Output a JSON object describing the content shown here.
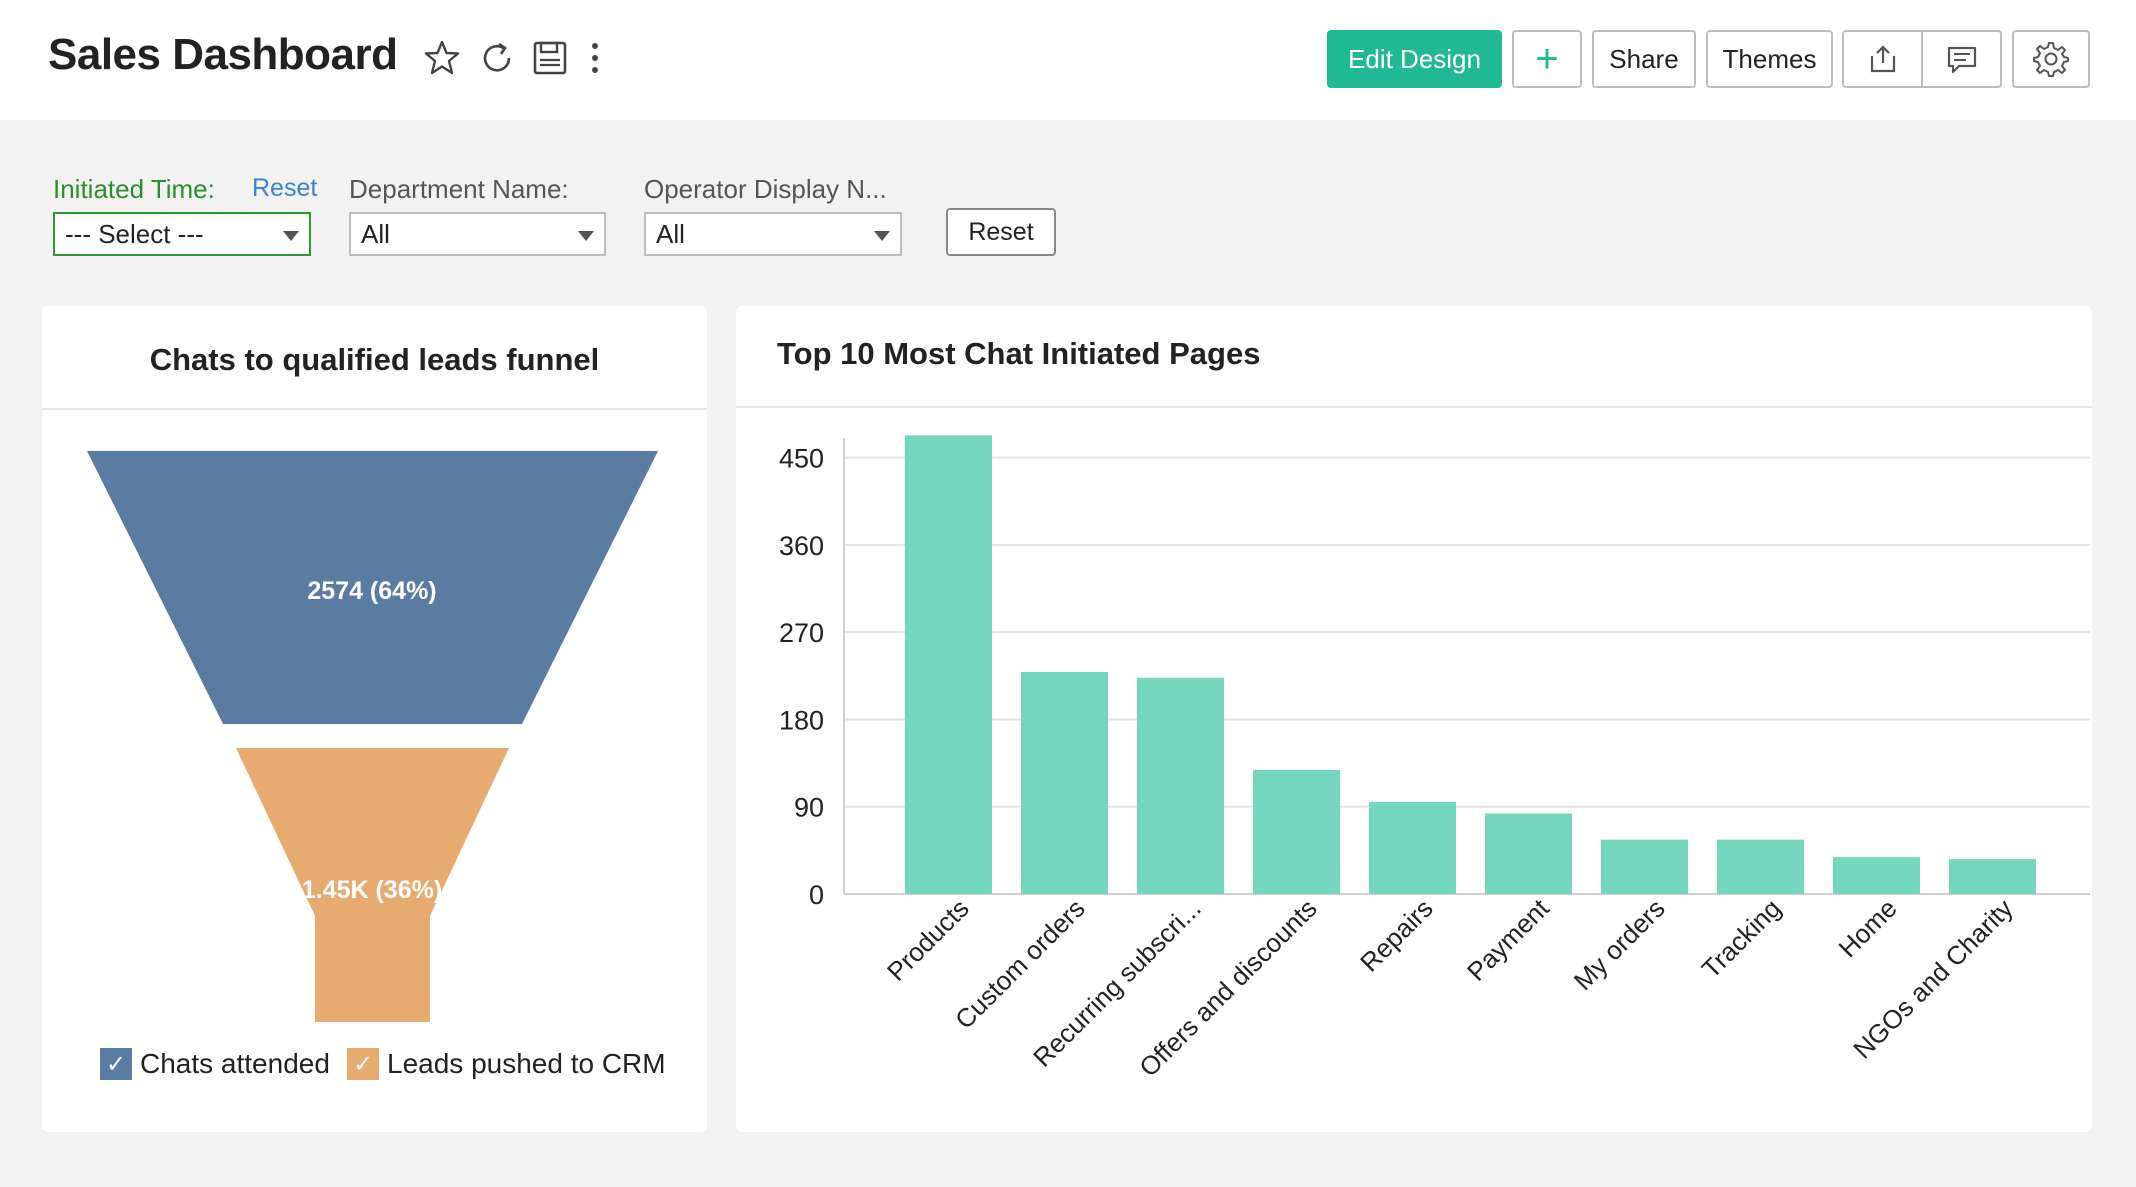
{
  "header": {
    "title": "Sales Dashboard",
    "icons": [
      "star-icon",
      "refresh-icon",
      "save-icon",
      "more-vertical-icon"
    ],
    "buttons": {
      "edit_design": "Edit Design",
      "add": "+",
      "share": "Share",
      "themes": "Themes"
    },
    "action_icons": [
      "export-icon",
      "comment-icon",
      "settings-gear-icon"
    ]
  },
  "filters": {
    "initiated_time": {
      "label": "Initiated Time:",
      "reset_link": "Reset",
      "value": "--- Select ---"
    },
    "department": {
      "label": "Department Name:",
      "value": "All"
    },
    "operator": {
      "label": "Operator Display N...",
      "value": "All"
    },
    "reset_button": "Reset"
  },
  "funnel_card": {
    "title": "Chats to qualified leads funnel",
    "chart_data": {
      "type": "funnel",
      "stages": [
        {
          "name": "Chats attended",
          "value": 2574,
          "label": "2574 (64%)",
          "color": "#5a7ca3"
        },
        {
          "name": "Leads pushed to CRM",
          "value": 1450,
          "label": "1.45K (36%)",
          "color": "#e7ab6f"
        }
      ],
      "legend": [
        "Chats attended",
        "Leads pushed to CRM"
      ]
    }
  },
  "bar_card": {
    "title": "Top 10 Most Chat Initiated Pages",
    "chart_data": {
      "type": "bar",
      "categories": [
        "Products",
        "Custom orders",
        "Recurring subscri...",
        "Offers and discounts",
        "Repairs",
        "Payment",
        "My orders",
        "Tracking",
        "Home",
        "NGOs and Charity"
      ],
      "values": [
        473,
        229,
        223,
        128,
        95,
        83,
        56,
        56,
        38,
        36
      ],
      "ylim": [
        0,
        495
      ],
      "yticks": [
        0,
        90,
        180,
        270,
        360,
        450
      ],
      "color": "#74d6bd",
      "grid": true
    }
  }
}
